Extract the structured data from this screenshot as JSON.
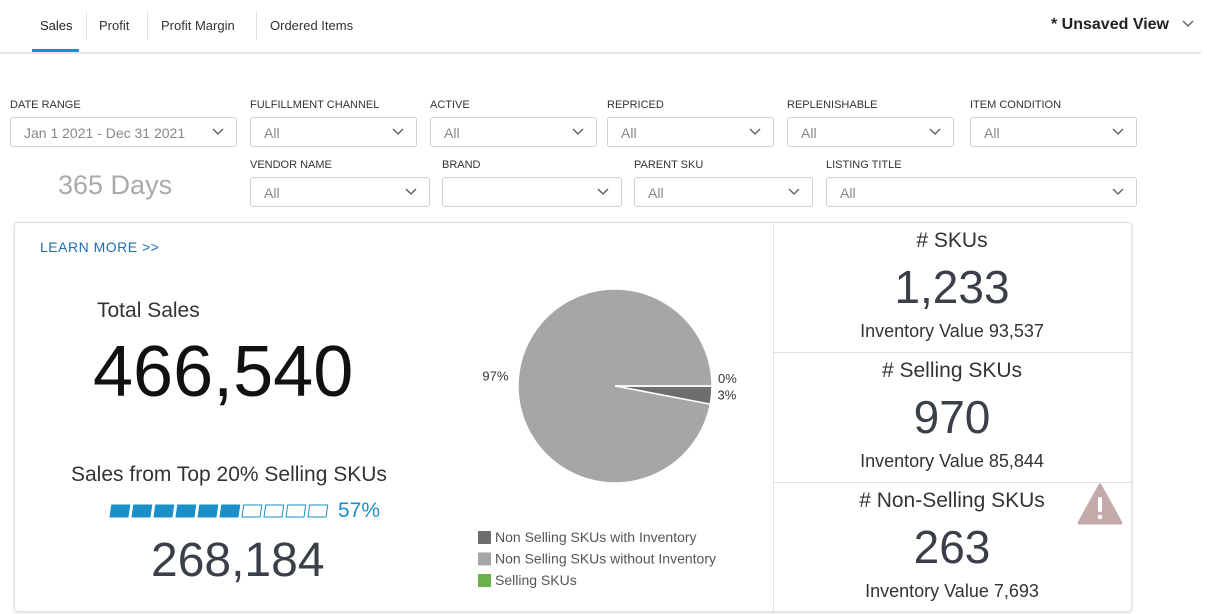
{
  "tabs": [
    "Sales",
    "Profit",
    "Profit Margin",
    "Ordered Items"
  ],
  "view": "* Unsaved View",
  "filters": [
    {
      "label": "DATE RANGE",
      "value": "Jan 1 2021 - Dec 31 2021"
    },
    {
      "label": "FULFILLMENT CHANNEL",
      "value": "All"
    },
    {
      "label": "ACTIVE",
      "value": "All"
    },
    {
      "label": "REPRICED",
      "value": "All"
    },
    {
      "label": "REPLENISHABLE",
      "value": "All"
    },
    {
      "label": "ITEM CONDITION",
      "value": "All"
    },
    {
      "label": "VENDOR NAME",
      "value": "All"
    },
    {
      "label": "BRAND"
    },
    {
      "label": "PARENT SKU",
      "value": "All"
    },
    {
      "label": "LISTING TITLE",
      "value": "All"
    }
  ],
  "days": "365 Days",
  "learn_more": "LEARN MORE >>",
  "total_sales": {
    "label": "Total Sales",
    "value": "466,540"
  },
  "top_sales": {
    "label": "Sales from Top 20% Selling SKUs",
    "percent": 57,
    "percent_label": "57%",
    "value": "268,184"
  },
  "chart_data": {
    "type": "pie",
    "series": [
      {
        "name": "Non Selling SKUs with Inventory",
        "color": "#6e6e6e",
        "values": [
          3
        ],
        "value_labels": [
          "3%"
        ]
      },
      {
        "name": "Non Selling SKUs without Inventory",
        "color": "#a6a6a6",
        "values": [
          97
        ],
        "value_labels": [
          "97%"
        ]
      },
      {
        "name": "Selling SKUs",
        "color": "#6ab04c",
        "values": [
          0
        ],
        "value_labels": [
          "0%"
        ]
      }
    ]
  },
  "kpis": [
    {
      "title": "# SKUs",
      "value": "1,233",
      "sub": "Inventory Value 93,537"
    },
    {
      "title": "# Selling SKUs",
      "value": "970",
      "sub": "Inventory Value 85,844"
    },
    {
      "title": "# Non-Selling SKUs",
      "value": "263",
      "sub": "Inventory Value 7,693"
    }
  ]
}
